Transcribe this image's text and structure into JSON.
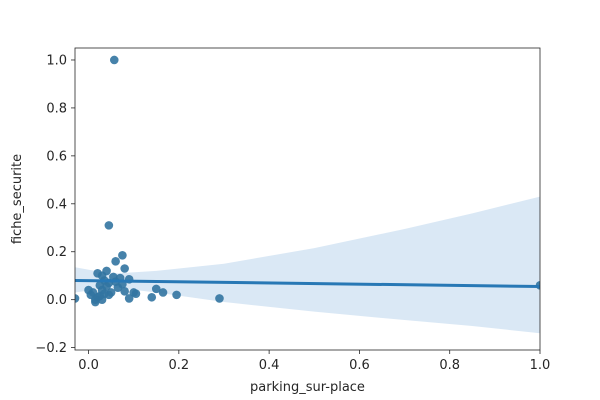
{
  "chart_data": {
    "type": "scatter",
    "title": "",
    "xlabel": "parking_sur-place",
    "ylabel": "fiche_securite",
    "xlim": [
      -0.03,
      1.0
    ],
    "ylim": [
      -0.21,
      1.05
    ],
    "xticks": [
      0.0,
      0.2,
      0.4,
      0.6,
      0.8,
      1.0
    ],
    "xtick_labels": [
      "0.0",
      "0.2",
      "0.4",
      "0.6",
      "0.8",
      "1.0"
    ],
    "yticks": [
      -0.2,
      0.0,
      0.2,
      0.4,
      0.6,
      0.8,
      1.0
    ],
    "ytick_labels": [
      "−0.2",
      "0.0",
      "0.2",
      "0.4",
      "0.6",
      "0.8",
      "1.0"
    ],
    "grid": false,
    "legend": "none",
    "colors": {
      "points": "#3274a1",
      "line": "#2878b5",
      "band": "#c6dbef"
    },
    "regression": {
      "x": [
        -0.03,
        1.0
      ],
      "y": [
        0.08,
        0.055
      ]
    },
    "confidence_band": {
      "x": [
        -0.03,
        0.05,
        0.15,
        0.3,
        0.5,
        0.7,
        0.85,
        1.0
      ],
      "upper": [
        0.135,
        0.108,
        0.12,
        0.15,
        0.215,
        0.295,
        0.36,
        0.43
      ],
      "lower": [
        0.03,
        0.052,
        0.03,
        -0.01,
        -0.05,
        -0.085,
        -0.11,
        -0.14
      ]
    },
    "points": [
      {
        "x": 0.057,
        "y": 1.0
      },
      {
        "x": 0.045,
        "y": 0.31
      },
      {
        "x": 0.075,
        "y": 0.185
      },
      {
        "x": 0.06,
        "y": 0.16
      },
      {
        "x": 0.08,
        "y": 0.13
      },
      {
        "x": 0.04,
        "y": 0.12
      },
      {
        "x": 0.02,
        "y": 0.11
      },
      {
        "x": 0.03,
        "y": 0.1
      },
      {
        "x": 0.055,
        "y": 0.095
      },
      {
        "x": 0.07,
        "y": 0.09
      },
      {
        "x": 0.09,
        "y": 0.085
      },
      {
        "x": 0.035,
        "y": 0.08
      },
      {
        "x": 0.06,
        "y": 0.075
      },
      {
        "x": 0.045,
        "y": 0.07
      },
      {
        "x": 0.075,
        "y": 0.065
      },
      {
        "x": 0.025,
        "y": 0.06
      },
      {
        "x": 0.04,
        "y": 0.055
      },
      {
        "x": 0.065,
        "y": 0.05
      },
      {
        "x": 0.15,
        "y": 0.045
      },
      {
        "x": 0.0,
        "y": 0.04
      },
      {
        "x": 0.03,
        "y": 0.04
      },
      {
        "x": 0.08,
        "y": 0.035
      },
      {
        "x": 0.01,
        "y": 0.03
      },
      {
        "x": 0.05,
        "y": 0.03
      },
      {
        "x": 0.1,
        "y": 0.03
      },
      {
        "x": 0.165,
        "y": 0.03
      },
      {
        "x": 0.035,
        "y": 0.025
      },
      {
        "x": 0.105,
        "y": 0.025
      },
      {
        "x": 0.005,
        "y": 0.02
      },
      {
        "x": 0.045,
        "y": 0.02
      },
      {
        "x": 0.195,
        "y": 0.02
      },
      {
        "x": 0.025,
        "y": 0.015
      },
      {
        "x": 0.14,
        "y": 0.01
      },
      {
        "x": 0.02,
        "y": 0.01
      },
      {
        "x": -0.03,
        "y": 0.005
      },
      {
        "x": 0.09,
        "y": 0.005
      },
      {
        "x": 0.29,
        "y": 0.005
      },
      {
        "x": 0.015,
        "y": 0.0
      },
      {
        "x": 0.03,
        "y": 0.0
      },
      {
        "x": 0.015,
        "y": -0.01
      },
      {
        "x": 1.0,
        "y": 0.06
      }
    ]
  }
}
